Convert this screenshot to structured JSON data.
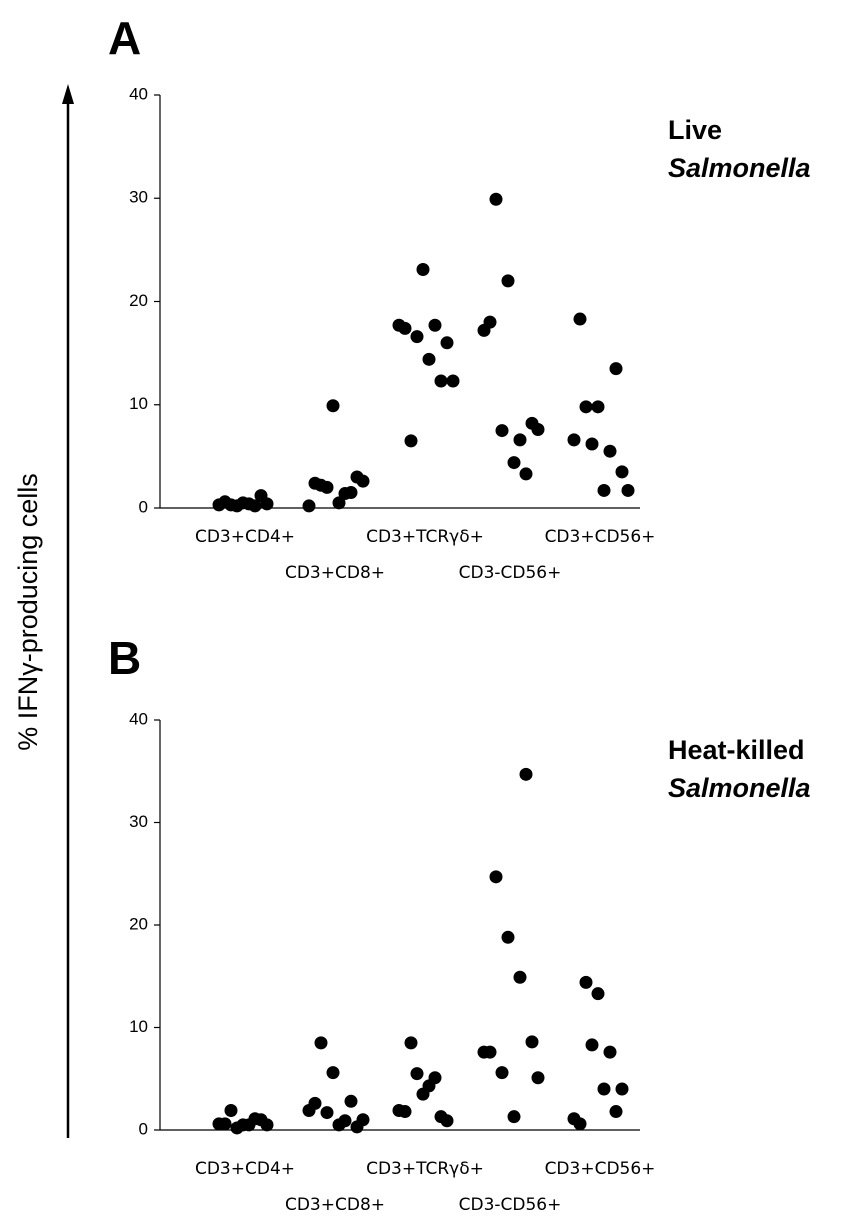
{
  "y_label": "% IFNγ-producing cells",
  "chart_data": [
    {
      "type": "scatter",
      "panel": "A",
      "condition": [
        "Live",
        "Salmonella"
      ],
      "categories": [
        "CD3+CD4+",
        "CD3+CD8+",
        "CD3+TCRγδ+",
        "CD3-CD56+",
        "CD3+CD56+"
      ],
      "values": [
        [
          0.6,
          0.2,
          0.4,
          1.2,
          0.3,
          0.5,
          0.2,
          0.4,
          0.3
        ],
        [
          2.4,
          2.0,
          0.5,
          1.5,
          2.2,
          9.9,
          1.4,
          3.0,
          0.2,
          2.6
        ],
        [
          17.4,
          16.6,
          14.4,
          12.3,
          6.5,
          23.1,
          17.7,
          16.0,
          17.7,
          12.3
        ],
        [
          18.0,
          7.5,
          4.4,
          3.3,
          29.9,
          22.0,
          6.6,
          8.2,
          17.2,
          7.6
        ],
        [
          18.3,
          6.2,
          1.7,
          13.5,
          9.8,
          9.8,
          5.5,
          3.5,
          6.6,
          1.7
        ]
      ],
      "color": "#000000",
      "ylim": [
        0,
        40
      ],
      "yticks": [
        0,
        10,
        20,
        30,
        40
      ]
    },
    {
      "type": "scatter",
      "panel": "B",
      "condition": [
        "Heat-killed",
        "Salmonella"
      ],
      "categories": [
        "CD3+CD4+",
        "CD3+CD8+",
        "CD3+TCRγδ+",
        "CD3-CD56+",
        "CD3+CD56+"
      ],
      "values": [
        [
          0.6,
          0.2,
          0.5,
          1.0,
          1.9,
          0.5,
          1.1,
          0.5,
          0.6
        ],
        [
          2.6,
          1.7,
          0.5,
          2.8,
          8.5,
          5.6,
          0.9,
          0.3,
          1.9,
          1.0
        ],
        [
          1.8,
          5.5,
          4.3,
          1.3,
          8.5,
          3.5,
          5.1,
          0.9,
          1.9
        ],
        [
          7.6,
          5.6,
          1.3,
          34.7,
          24.7,
          18.8,
          14.9,
          8.6,
          7.6,
          5.1
        ],
        [
          0.6,
          8.3,
          4.0,
          1.8,
          14.4,
          13.3,
          7.6,
          4.0,
          1.1
        ]
      ],
      "color": "#000000",
      "ylim": [
        0,
        40
      ],
      "yticks": [
        0,
        10,
        20,
        30,
        40
      ]
    }
  ]
}
